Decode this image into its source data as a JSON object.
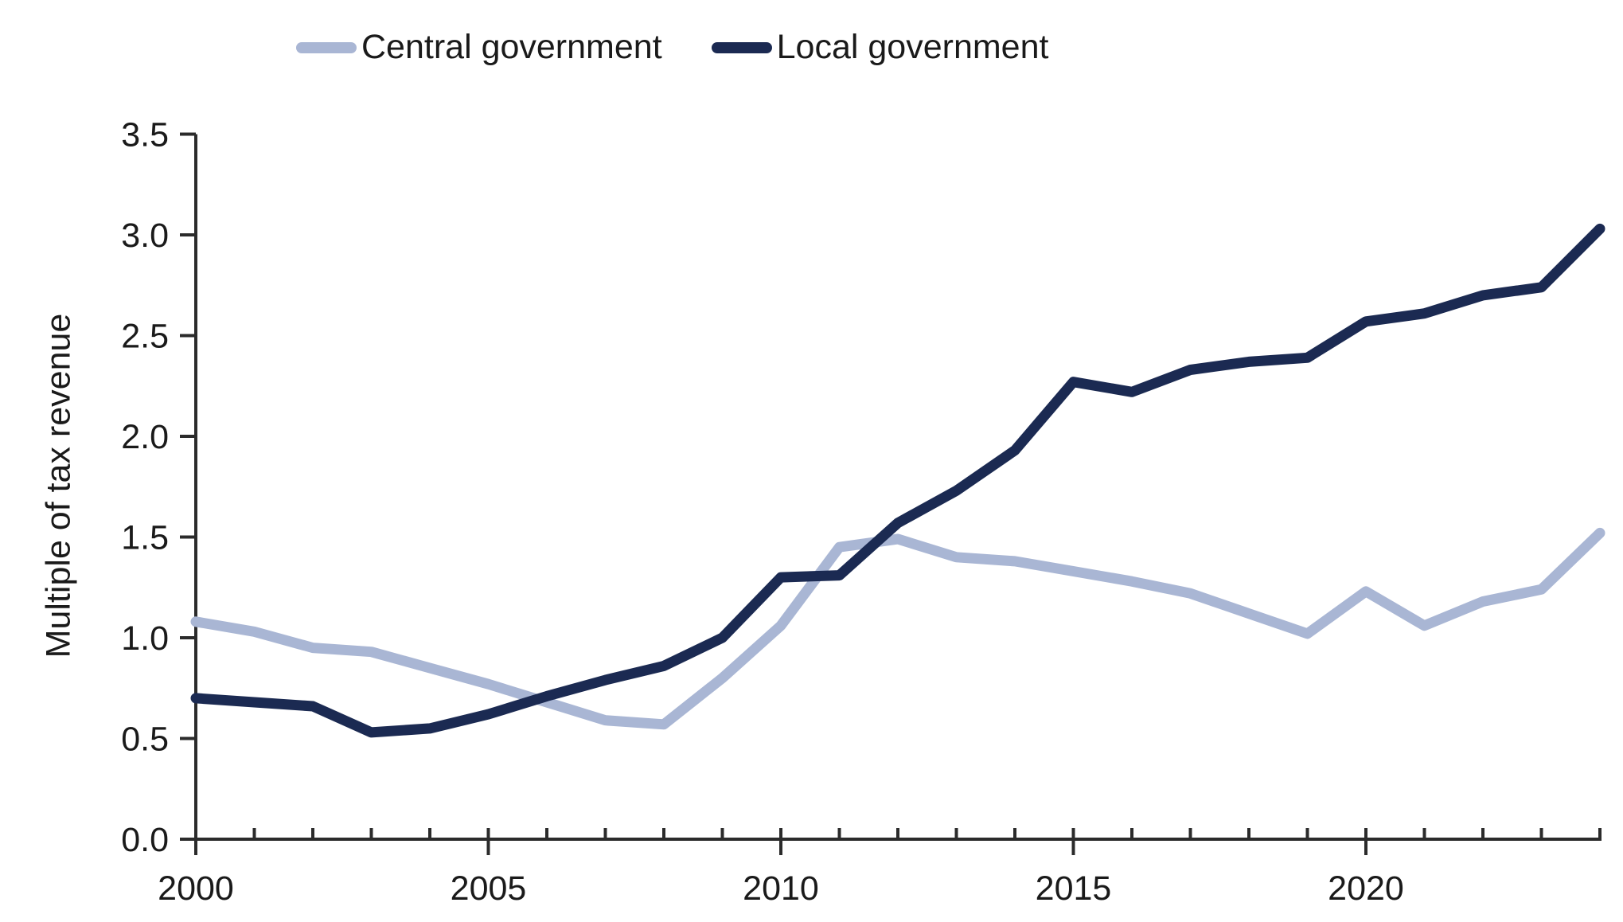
{
  "chart_data": {
    "type": "line",
    "title": "",
    "xlabel": "",
    "ylabel": "Multiple of tax revenue",
    "x": [
      2000,
      2001,
      2002,
      2003,
      2004,
      2005,
      2006,
      2007,
      2008,
      2009,
      2010,
      2011,
      2012,
      2013,
      2014,
      2015,
      2016,
      2017,
      2018,
      2019,
      2020,
      2021,
      2022,
      2023,
      2024
    ],
    "series": [
      {
        "name": "Central government",
        "color": "#a9b6d4",
        "values": [
          1.08,
          1.03,
          0.95,
          0.93,
          0.85,
          0.77,
          0.68,
          0.59,
          0.57,
          0.8,
          1.06,
          1.45,
          1.49,
          1.4,
          1.38,
          1.33,
          1.28,
          1.22,
          1.12,
          1.02,
          1.23,
          1.06,
          1.18,
          1.24,
          1.52
        ]
      },
      {
        "name": "Local government",
        "color": "#1b2a52",
        "values": [
          0.7,
          0.68,
          0.66,
          0.53,
          0.55,
          0.62,
          0.71,
          0.79,
          0.86,
          1.0,
          1.3,
          1.31,
          1.57,
          1.73,
          1.93,
          2.27,
          2.22,
          2.33,
          2.37,
          2.39,
          2.57,
          2.61,
          2.7,
          2.74,
          3.03
        ]
      }
    ],
    "ylim": [
      0,
      3.5
    ],
    "y_ticks": [
      0,
      0.5,
      1.0,
      1.5,
      2.0,
      2.5,
      3.0,
      3.5
    ],
    "y_tick_labels": [
      "0.0",
      "0.5",
      "1.0",
      "1.5",
      "2.0",
      "2.5",
      "3.0",
      "3.5"
    ],
    "x_major_ticks": [
      2000,
      2005,
      2010,
      2015,
      2020
    ],
    "x_tick_labels": [
      "2000",
      "2005",
      "2010",
      "2015",
      "2020"
    ],
    "legend_position": "top-center",
    "grid": false,
    "axis_color": "#2b2b2b",
    "text_color": "#1a1a1a",
    "line_width": 13
  }
}
